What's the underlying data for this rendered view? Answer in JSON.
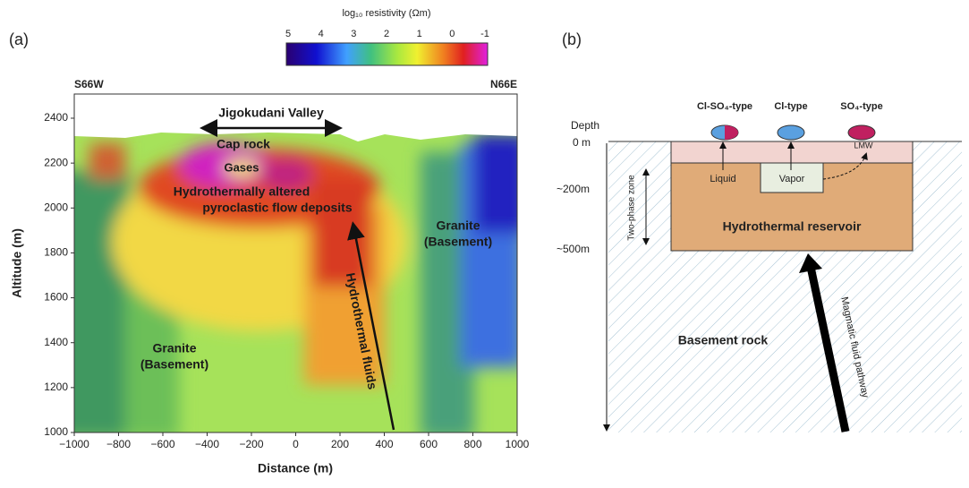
{
  "panel_a": {
    "label": "(a)",
    "colorbar": {
      "title": "log₁₀ resistivity (Ωm)",
      "ticks": [
        "5",
        "4",
        "3",
        "2",
        "1",
        "0",
        "-1"
      ]
    },
    "left_direction": "S66W",
    "right_direction": "N66E",
    "y_axis_title": "Altitude (m)",
    "x_axis_title": "Distance (m)",
    "yticks": [
      "2400",
      "2200",
      "2000",
      "1800",
      "1600",
      "1400",
      "1200",
      "1000"
    ],
    "xticks": [
      "−1000",
      "−800",
      "−600",
      "−400",
      "−200",
      "0",
      "200",
      "400",
      "600",
      "800",
      "1000"
    ],
    "annotations": {
      "valley": "Jigokudani Valley",
      "cap_rock": "Cap rock",
      "gases": "Gases",
      "altered_1": "Hydrothermally altered",
      "altered_2": "pyroclastic flow deposits",
      "granite_right_1": "Granite",
      "granite_right_2": "(Basement)",
      "granite_left_1": "Granite",
      "granite_left_2": "(Basement)",
      "fluids": "Hydrothermal fluids"
    }
  },
  "panel_b": {
    "label": "(b)",
    "spring_types": [
      "Cl-SO₄-type",
      "Cl-type",
      "SO₄-type"
    ],
    "depth_title": "Depth",
    "depths": [
      "0 m",
      "~200m",
      "~500m"
    ],
    "two_phase": "Two-phase zone",
    "liquid": "Liquid",
    "vapor": "Vapor",
    "lmw": "LMW",
    "reservoir": "Hydrothermal reservoir",
    "basement": "Basement rock",
    "pathway": "Magmatic fluid pathway"
  }
}
